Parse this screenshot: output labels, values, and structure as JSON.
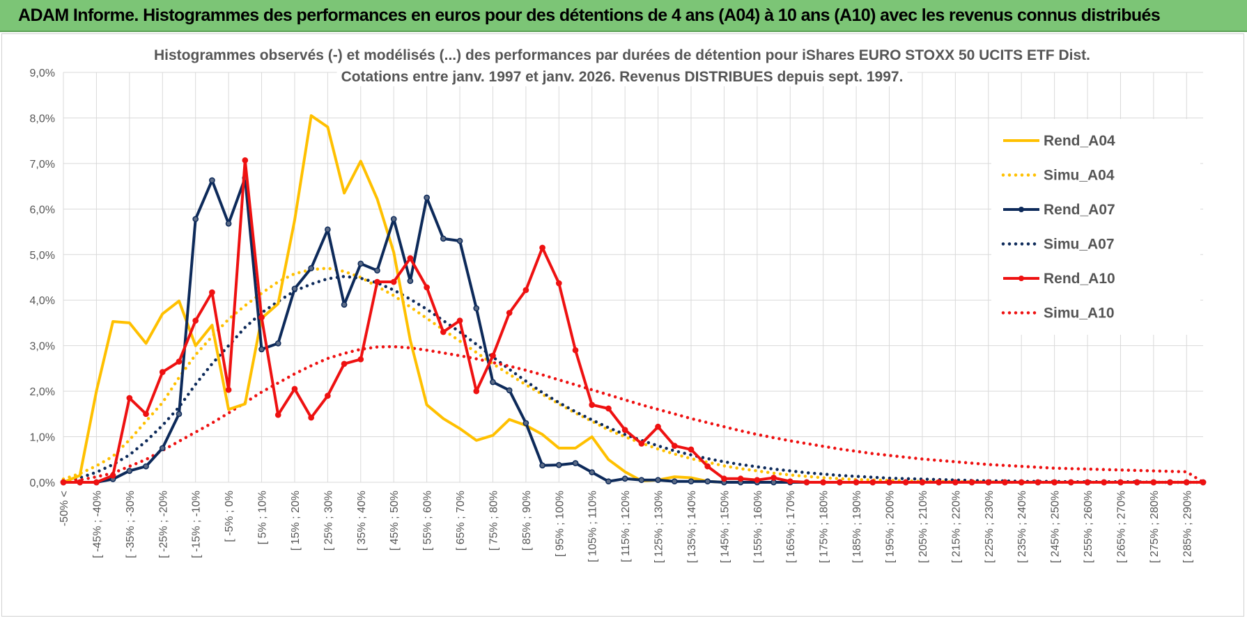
{
  "header": {
    "title": "ADAM Informe. Histogrammes des performances en euros pour des détentions de 4 ans (A04) à 10 ans (A10) avec les revenus connus distribués"
  },
  "chart_data": {
    "type": "line",
    "title": [
      "Histogrammes observés (-) et modélisés (...) des performances par durées de détention pour iShares EURO STOXX 50 UCITS ETF Dist.",
      "Cotations entre janv. 1997 et janv. 2026. Revenus DISTRIBUES depuis sept. 1997."
    ],
    "xlabel": "",
    "ylabel": "",
    "ylim": [
      0,
      9
    ],
    "y_ticks": [
      "0,0%",
      "1,0%",
      "2,0%",
      "3,0%",
      "4,0%",
      "5,0%",
      "6,0%",
      "7,0%",
      "8,0%",
      "9,0%"
    ],
    "grid": true,
    "legend_position": "right",
    "categories": [
      "-50% <",
      "",
      "[ -45% ; -40%",
      "",
      "[ -35% ; -30%",
      "",
      "[ -25% ; -20%",
      "",
      "[ -15% ; -10%",
      "",
      "[ -5% ; 0%",
      "",
      "[ 5% ; 10%",
      "",
      "[ 15% ; 20%",
      "",
      "[ 25% ; 30%",
      "",
      "[ 35% ; 40%",
      "",
      "[ 45% ; 50%",
      "",
      "[ 55% ; 60%",
      "",
      "[ 65% ; 70%",
      "",
      "[ 75% ; 80%",
      "",
      "[ 85% ; 90%",
      "",
      "[ 95% ; 100%",
      "",
      "[ 105% ; 110%",
      "",
      "[ 115% ; 120%",
      "",
      "[ 125% ; 130%",
      "",
      "[ 135% ; 140%",
      "",
      "[ 145% ; 150%",
      "",
      "[ 155% ; 160%",
      "",
      "[ 165% ; 170%",
      "",
      "[ 175% ; 180%",
      "",
      "[ 185% ; 190%",
      "",
      "[ 195% ; 200%",
      "",
      "[ 205% ; 210%",
      "",
      "[ 215% ; 220%",
      "",
      "[ 225% ; 230%",
      "",
      "[ 235% ; 240%",
      "",
      "[ 245% ; 250%",
      "",
      "[ 255% ; 260%",
      "",
      "[ 265% ; 270%",
      "",
      "[ 275% ; 280%",
      "",
      "[ 285% ; 290%",
      ""
    ],
    "series": [
      {
        "name": "Rend_A04",
        "style": "solid",
        "markers": false,
        "color": "#FFC000",
        "values": [
          0.0,
          0.15,
          2.0,
          3.53,
          3.5,
          3.05,
          3.7,
          3.98,
          3.0,
          3.45,
          1.6,
          1.72,
          3.6,
          3.92,
          5.75,
          8.05,
          7.8,
          6.35,
          7.05,
          6.22,
          5.05,
          3.12,
          1.7,
          1.4,
          1.18,
          0.92,
          1.03,
          1.38,
          1.25,
          1.05,
          0.75,
          0.75,
          1.0,
          0.5,
          0.23,
          0.03,
          0.05,
          0.12,
          0.1,
          0.02,
          0.0,
          0.0,
          0.0,
          0.0,
          0.0,
          0.0,
          0.0,
          0.0,
          0.0,
          0.0,
          0.0,
          0.0,
          0.0,
          0.0,
          0.0,
          0.0,
          0.0,
          0.0,
          0.0,
          0.0,
          0.0,
          0.0,
          0.0,
          0.0,
          0.0,
          0.0,
          0.0,
          0.0,
          0.0,
          0.0
        ]
      },
      {
        "name": "Simu_A04",
        "style": "dotted",
        "markers": false,
        "color": "#FFC000",
        "values": [
          0.07,
          0.19,
          0.36,
          0.57,
          0.93,
          1.34,
          1.75,
          2.3,
          2.8,
          3.2,
          3.58,
          3.88,
          4.15,
          4.4,
          4.58,
          4.67,
          4.7,
          4.63,
          4.5,
          4.3,
          4.1,
          3.85,
          3.6,
          3.35,
          3.1,
          2.85,
          2.6,
          2.37,
          2.14,
          1.93,
          1.72,
          1.52,
          1.34,
          1.15,
          1.0,
          0.86,
          0.73,
          0.62,
          0.52,
          0.44,
          0.36,
          0.3,
          0.25,
          0.2,
          0.16,
          0.13,
          0.1,
          0.08,
          0.06,
          0.05,
          0.04,
          0.03,
          0.02,
          0.02,
          0.01,
          0.01,
          0.01,
          0.0,
          0.0,
          0.0,
          0.0,
          0.0,
          0.0,
          0.0,
          0.0,
          0.0,
          0.0,
          0.0,
          0.0,
          0.0
        ]
      },
      {
        "name": "Rend_A07",
        "style": "solid",
        "markers": true,
        "color": "#0D2A5A",
        "values": [
          0.0,
          0.0,
          0.0,
          0.07,
          0.25,
          0.35,
          0.75,
          1.5,
          5.78,
          6.63,
          5.68,
          6.68,
          2.92,
          3.05,
          4.25,
          4.7,
          5.55,
          3.9,
          4.8,
          4.65,
          5.78,
          4.42,
          6.25,
          5.35,
          5.3,
          3.82,
          2.2,
          2.02,
          1.3,
          0.37,
          0.38,
          0.42,
          0.22,
          0.02,
          0.08,
          0.05,
          0.05,
          0.02,
          0.02,
          0.02,
          0.0,
          0.0,
          0.0,
          0.0,
          0.0,
          0.0,
          0.0,
          0.0,
          0.0,
          0.0,
          0.0,
          0.0,
          0.0,
          0.0,
          0.0,
          0.0,
          0.0,
          0.0,
          0.0,
          0.0,
          0.0,
          0.0,
          0.0,
          0.0,
          0.0,
          0.0,
          0.0,
          0.0,
          0.0,
          0.0
        ]
      },
      {
        "name": "Simu_A07",
        "style": "dotted",
        "markers": false,
        "color": "#0D2A5A",
        "values": [
          0.0,
          0.1,
          0.22,
          0.39,
          0.6,
          0.9,
          1.25,
          1.65,
          2.15,
          2.6,
          3.0,
          3.4,
          3.72,
          3.97,
          4.2,
          4.35,
          4.47,
          4.52,
          4.48,
          4.38,
          4.22,
          4.02,
          3.8,
          3.55,
          3.3,
          3.03,
          2.75,
          2.48,
          2.22,
          1.97,
          1.75,
          1.55,
          1.37,
          1.2,
          1.05,
          0.92,
          0.8,
          0.69,
          0.6,
          0.52,
          0.45,
          0.39,
          0.34,
          0.29,
          0.25,
          0.21,
          0.18,
          0.15,
          0.13,
          0.11,
          0.09,
          0.08,
          0.07,
          0.06,
          0.05,
          0.04,
          0.03,
          0.03,
          0.02,
          0.02,
          0.02,
          0.01,
          0.01,
          0.01,
          0.01,
          0.01,
          0.0,
          0.0,
          0.0,
          0.0
        ]
      },
      {
        "name": "Rend_A10",
        "style": "solid",
        "markers": true,
        "color": "#EE1111",
        "values": [
          0.0,
          0.0,
          0.0,
          0.15,
          1.85,
          1.5,
          2.42,
          2.65,
          3.55,
          4.17,
          2.03,
          7.07,
          3.62,
          1.48,
          2.05,
          1.42,
          1.9,
          2.6,
          2.7,
          4.4,
          4.4,
          4.92,
          4.28,
          3.3,
          3.55,
          2.0,
          2.78,
          3.72,
          4.22,
          5.15,
          4.37,
          2.9,
          1.7,
          1.62,
          1.15,
          0.85,
          1.22,
          0.8,
          0.72,
          0.35,
          0.08,
          0.08,
          0.05,
          0.1,
          0.02,
          0.0,
          0.0,
          0.0,
          0.0,
          0.0,
          0.0,
          0.0,
          0.0,
          0.0,
          0.0,
          0.0,
          0.0,
          0.0,
          0.0,
          0.0,
          0.0,
          0.0,
          0.0,
          0.0,
          0.0,
          0.0,
          0.0,
          0.0,
          0.0,
          0.0
        ]
      },
      {
        "name": "Simu_A10",
        "style": "dotted",
        "markers": false,
        "color": "#EE1111",
        "values": [
          0.02,
          0.05,
          0.12,
          0.2,
          0.35,
          0.5,
          0.7,
          0.9,
          1.1,
          1.3,
          1.52,
          1.75,
          1.98,
          2.18,
          2.38,
          2.56,
          2.72,
          2.83,
          2.92,
          2.97,
          2.98,
          2.95,
          2.9,
          2.84,
          2.78,
          2.71,
          2.63,
          2.55,
          2.46,
          2.36,
          2.25,
          2.14,
          2.03,
          1.92,
          1.81,
          1.7,
          1.6,
          1.5,
          1.4,
          1.31,
          1.22,
          1.13,
          1.05,
          0.98,
          0.91,
          0.85,
          0.79,
          0.73,
          0.68,
          0.63,
          0.59,
          0.55,
          0.51,
          0.48,
          0.45,
          0.42,
          0.39,
          0.37,
          0.35,
          0.33,
          0.31,
          0.3,
          0.29,
          0.28,
          0.27,
          0.26,
          0.25,
          0.24,
          0.23,
          0.0
        ]
      }
    ]
  }
}
